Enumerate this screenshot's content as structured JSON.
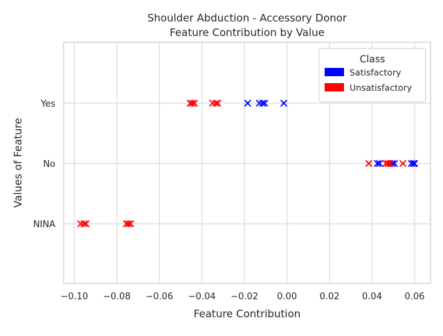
{
  "chart_data": {
    "type": "scatter",
    "title": "Shoulder Abduction - Accessory Donor",
    "subtitle": "Feature Contribution by Value",
    "xlabel": "Feature Contribution",
    "ylabel": "Values of Feature",
    "xlim": [
      -0.105,
      0.0675
    ],
    "x_ticks": [
      "−0.10",
      "−0.08",
      "−0.06",
      "−0.04",
      "−0.02",
      "0.00",
      "0.02",
      "0.04",
      "0.06"
    ],
    "x_tick_values": [
      -0.1,
      -0.08,
      -0.06,
      -0.04,
      -0.02,
      0.0,
      0.02,
      0.04,
      0.06
    ],
    "categories": [
      "Yes",
      "No",
      "NINA"
    ],
    "grid": true,
    "marker": "x",
    "legend": {
      "title": "Class",
      "placement": "top-right",
      "entries": [
        {
          "name": "Satisfactory",
          "color": "#0000ff"
        },
        {
          "name": "Unsatisfactory",
          "color": "#ff0000"
        }
      ]
    },
    "series": [
      {
        "name": "Satisfactory",
        "color": "#0000ff",
        "points": [
          {
            "x": -0.0185,
            "y": "Yes"
          },
          {
            "x": -0.013,
            "y": "Yes"
          },
          {
            "x": -0.0115,
            "y": "Yes"
          },
          {
            "x": -0.0105,
            "y": "Yes"
          },
          {
            "x": -0.0015,
            "y": "Yes"
          },
          {
            "x": 0.0425,
            "y": "No"
          },
          {
            "x": 0.0435,
            "y": "No"
          },
          {
            "x": 0.0495,
            "y": "No"
          },
          {
            "x": 0.0505,
            "y": "No"
          },
          {
            "x": 0.0585,
            "y": "No"
          },
          {
            "x": 0.0595,
            "y": "No"
          },
          {
            "x": 0.06,
            "y": "No"
          }
        ]
      },
      {
        "name": "Unsatisfactory",
        "color": "#ff0000",
        "points": [
          {
            "x": -0.0455,
            "y": "Yes"
          },
          {
            "x": -0.0445,
            "y": "Yes"
          },
          {
            "x": -0.0435,
            "y": "Yes"
          },
          {
            "x": -0.035,
            "y": "Yes"
          },
          {
            "x": -0.0335,
            "y": "Yes"
          },
          {
            "x": -0.0325,
            "y": "Yes"
          },
          {
            "x": 0.0385,
            "y": "No"
          },
          {
            "x": 0.0465,
            "y": "No"
          },
          {
            "x": 0.0475,
            "y": "No"
          },
          {
            "x": 0.0485,
            "y": "No"
          },
          {
            "x": 0.0545,
            "y": "No"
          },
          {
            "x": -0.097,
            "y": "NINA"
          },
          {
            "x": -0.0955,
            "y": "NINA"
          },
          {
            "x": -0.0945,
            "y": "NINA"
          },
          {
            "x": -0.0755,
            "y": "NINA"
          },
          {
            "x": -0.0745,
            "y": "NINA"
          },
          {
            "x": -0.0735,
            "y": "NINA"
          }
        ]
      }
    ]
  }
}
